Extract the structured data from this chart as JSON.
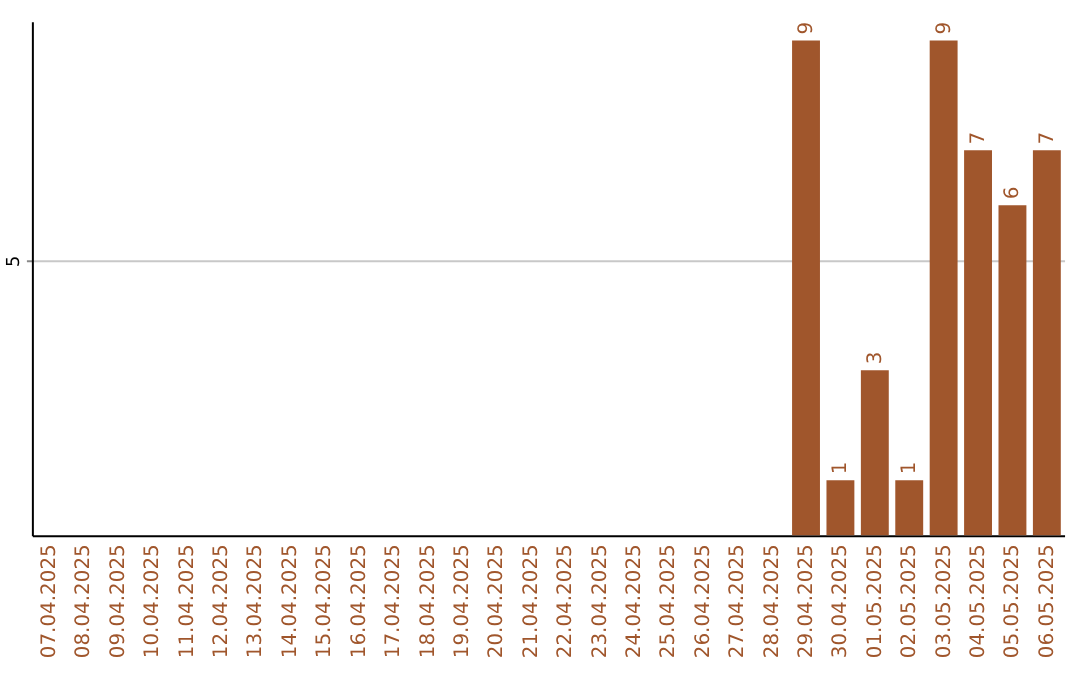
{
  "chart_data": {
    "type": "bar",
    "categories": [
      "07.04.2025",
      "08.04.2025",
      "09.04.2025",
      "10.04.2025",
      "11.04.2025",
      "12.04.2025",
      "13.04.2025",
      "14.04.2025",
      "15.04.2025",
      "16.04.2025",
      "17.04.2025",
      "18.04.2025",
      "19.04.2025",
      "20.04.2025",
      "21.04.2025",
      "22.04.2025",
      "23.04.2025",
      "24.04.2025",
      "25.04.2025",
      "26.04.2025",
      "27.04.2025",
      "28.04.2025",
      "29.04.2025",
      "30.04.2025",
      "01.05.2025",
      "02.05.2025",
      "03.05.2025",
      "04.05.2025",
      "05.05.2025",
      "06.05.2025"
    ],
    "values": [
      null,
      null,
      null,
      null,
      null,
      null,
      null,
      null,
      null,
      null,
      null,
      null,
      null,
      null,
      null,
      null,
      null,
      null,
      null,
      null,
      null,
      null,
      9,
      1,
      3,
      1,
      9,
      7,
      6,
      7
    ],
    "data_labels": true,
    "color": "#a0562c",
    "ylim": [
      0,
      9.35
    ],
    "yticks": [
      5
    ],
    "grid": "y"
  }
}
